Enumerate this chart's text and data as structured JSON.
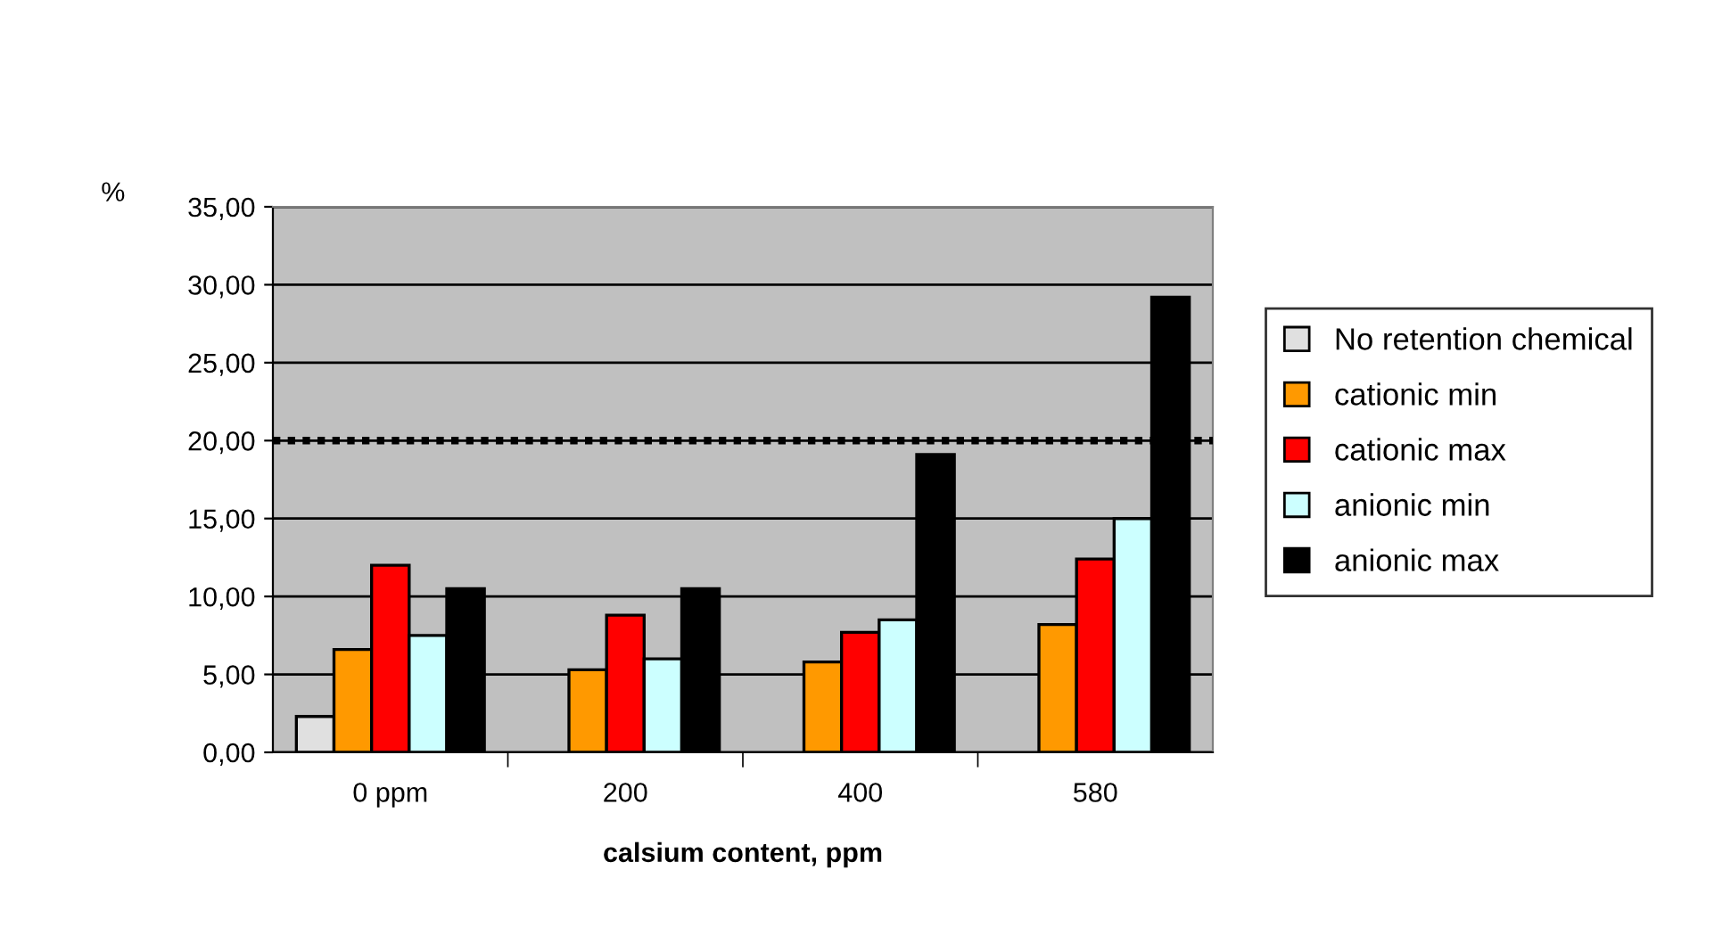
{
  "chart_data": {
    "type": "bar",
    "xlabel": "calsium content, ppm",
    "ylabel": "%",
    "categories": [
      "0 ppm",
      "200",
      "400",
      "580"
    ],
    "series": [
      {
        "name": "No retention chemical",
        "color": "#e0e0e0",
        "values": [
          2.3,
          null,
          null,
          null
        ]
      },
      {
        "name": "cationic min",
        "color": "#ff9900",
        "values": [
          6.6,
          5.3,
          5.8,
          8.2
        ]
      },
      {
        "name": "cationic max",
        "color": "#ff0000",
        "values": [
          12.0,
          8.8,
          7.7,
          12.4
        ]
      },
      {
        "name": "anionic min",
        "color": "#ccffff",
        "values": [
          7.5,
          6.0,
          8.5,
          15.0
        ]
      },
      {
        "name": "anionic max",
        "color": "#000000",
        "values": [
          10.5,
          10.5,
          19.1,
          29.2
        ]
      }
    ],
    "ylim": [
      0,
      35
    ],
    "yticks": [
      {
        "value": 0,
        "label": "0,00"
      },
      {
        "value": 5,
        "label": "5,00"
      },
      {
        "value": 10,
        "label": "10,00"
      },
      {
        "value": 15,
        "label": "15,00"
      },
      {
        "value": 20,
        "label": "20,00"
      },
      {
        "value": 25,
        "label": "25,00"
      },
      {
        "value": 30,
        "label": "30,00"
      },
      {
        "value": 35,
        "label": "35,00"
      }
    ],
    "ref_lines": [
      {
        "axis": "y",
        "value": 20,
        "line_style": "dotted",
        "color": "#000000"
      }
    ],
    "grid": "y",
    "legend": "right"
  }
}
